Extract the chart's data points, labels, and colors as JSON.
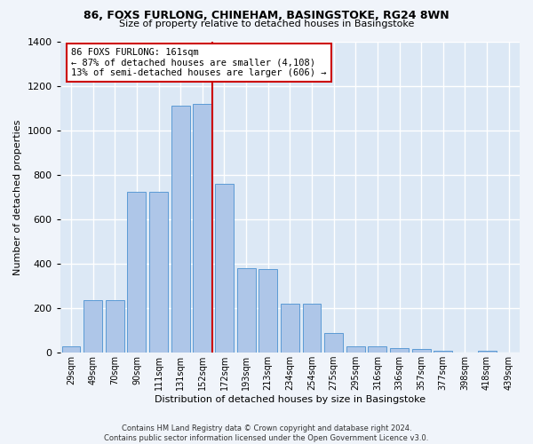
{
  "title_line1": "86, FOXS FURLONG, CHINEHAM, BASINGSTOKE, RG24 8WN",
  "title_line2": "Size of property relative to detached houses in Basingstoke",
  "xlabel": "Distribution of detached houses by size in Basingstoke",
  "ylabel": "Number of detached properties",
  "footnote": "Contains HM Land Registry data © Crown copyright and database right 2024.\nContains public sector information licensed under the Open Government Licence v3.0.",
  "annotation_line1": "86 FOXS FURLONG: 161sqm",
  "annotation_line2": "← 87% of detached houses are smaller (4,108)",
  "annotation_line3": "13% of semi-detached houses are larger (606) →",
  "property_line_x": 4,
  "bar_color": "#aec6e8",
  "bar_edge_color": "#5b9bd5",
  "annotation_box_color": "#ffffff",
  "annotation_box_edge": "#cc0000",
  "vline_color": "#cc0000",
  "background_color": "#dce8f5",
  "grid_color": "#ffffff",
  "categories": [
    "29sqm",
    "49sqm",
    "70sqm",
    "90sqm",
    "111sqm",
    "131sqm",
    "152sqm",
    "172sqm",
    "193sqm",
    "213sqm",
    "234sqm",
    "254sqm",
    "275sqm",
    "295sqm",
    "316sqm",
    "336sqm",
    "357sqm",
    "377sqm",
    "398sqm",
    "418sqm",
    "439sqm"
  ],
  "bar_heights": [
    30,
    235,
    235,
    725,
    725,
    1110,
    1120,
    760,
    380,
    375,
    220,
    220,
    90,
    30,
    28,
    22,
    15,
    10,
    0,
    10,
    0
  ],
  "ylim": [
    0,
    1400
  ],
  "yticks": [
    0,
    200,
    400,
    600,
    800,
    1000,
    1200,
    1400
  ],
  "fig_bg": "#f0f4fa"
}
